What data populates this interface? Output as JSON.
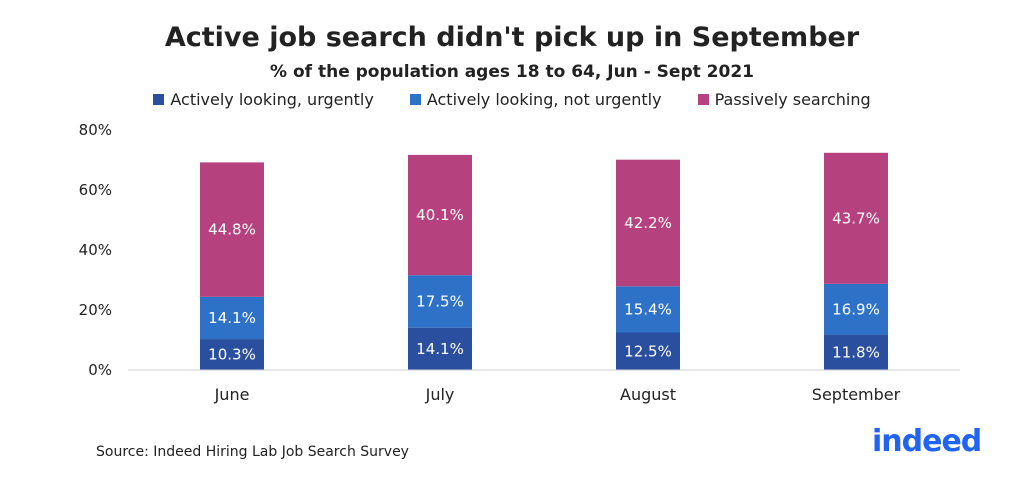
{
  "chart_data": {
    "type": "bar",
    "stacked": true,
    "title": "Active job search didn't pick up in September",
    "subtitle": "% of the population ages 18 to 64, Jun - Sept 2021",
    "categories": [
      "June",
      "July",
      "August",
      "September"
    ],
    "series": [
      {
        "name": "Actively looking, urgently",
        "color": "#2a4f9e",
        "values": [
          10.3,
          14.1,
          12.5,
          11.8
        ],
        "labels": [
          "10.3%",
          "14.1%",
          "12.5%",
          "11.8%"
        ]
      },
      {
        "name": "Actively looking, not urgently",
        "color": "#2e72c8",
        "values": [
          14.1,
          17.5,
          15.4,
          16.9
        ],
        "labels": [
          "14.1%",
          "17.5%",
          "15.4%",
          "16.9%"
        ]
      },
      {
        "name": "Passively searching",
        "color": "#b5427e",
        "values": [
          44.8,
          40.1,
          42.2,
          43.7
        ],
        "labels": [
          "44.8%",
          "40.1%",
          "42.2%",
          "43.7%"
        ]
      }
    ],
    "ylim": [
      0,
      80
    ],
    "yticks": [
      0,
      20,
      40,
      60,
      80
    ],
    "ytick_labels": [
      "0%",
      "20%",
      "40%",
      "60%",
      "80%"
    ],
    "xlabel": "",
    "ylabel": "",
    "legend_position": "top",
    "grid": false
  },
  "source": "Source: Indeed Hiring Lab Job Search Survey",
  "logo_text": "indeed"
}
